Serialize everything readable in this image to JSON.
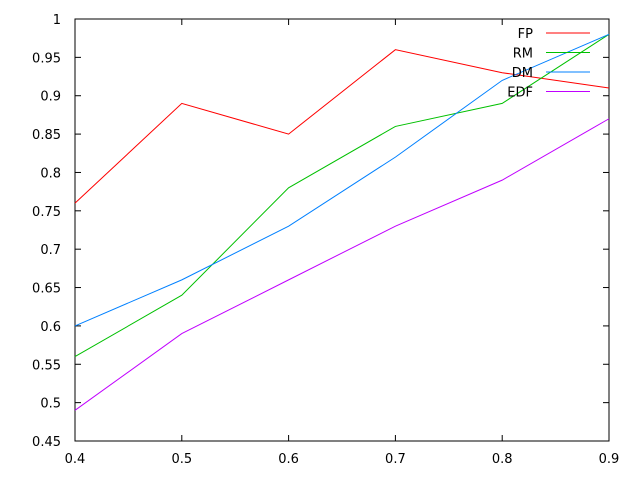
{
  "chart_data": {
    "type": "line",
    "title": "",
    "xlabel": "",
    "ylabel": "",
    "xlim": [
      0.4,
      0.9
    ],
    "ylim": [
      0.45,
      1.0
    ],
    "x": [
      0.4,
      0.5,
      0.6,
      0.7,
      0.8,
      0.9
    ],
    "x_ticks": [
      "0.4",
      "0.5",
      "0.6",
      "0.7",
      "0.8",
      "0.9"
    ],
    "y_ticks": [
      "0.45",
      "0.5",
      "0.55",
      "0.6",
      "0.65",
      "0.7",
      "0.75",
      "0.8",
      "0.85",
      "0.9",
      "0.95",
      "1"
    ],
    "grid": false,
    "legend_position": "top-right",
    "series": [
      {
        "name": "FP",
        "color": "#ff0000",
        "values": [
          0.76,
          0.89,
          0.85,
          0.96,
          0.93,
          0.91
        ]
      },
      {
        "name": "RM",
        "color": "#00c000",
        "values": [
          0.56,
          0.64,
          0.78,
          0.86,
          0.89,
          0.98
        ]
      },
      {
        "name": "DM",
        "color": "#0080ff",
        "values": [
          0.6,
          0.66,
          0.73,
          0.82,
          0.92,
          0.98
        ]
      },
      {
        "name": "EDF",
        "color": "#c000ff",
        "values": [
          0.49,
          0.59,
          0.66,
          0.73,
          0.79,
          0.87
        ]
      }
    ]
  }
}
